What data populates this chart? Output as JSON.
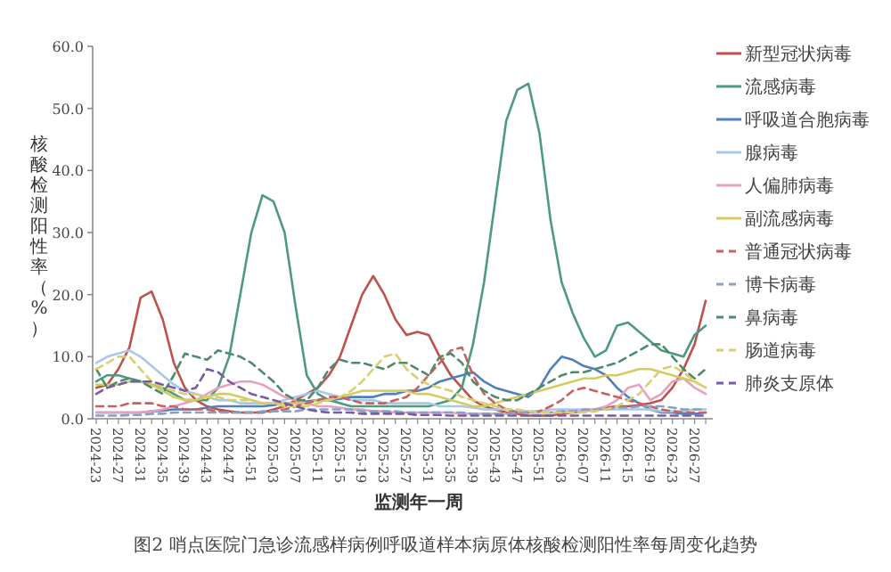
{
  "chart_data": {
    "type": "line",
    "title": "图2 哨点医院门急诊流感样病例呼吸道样本病原体核酸检测阳性率每周变化趋势",
    "xlabel": "监测年一周",
    "ylabel": "核酸检测阳性率（%）",
    "categories": [
      "2024-23",
      null,
      "2024-27",
      null,
      "2024-31",
      null,
      "2024-35",
      null,
      "2024-39",
      null,
      "2024-43",
      null,
      "2024-47",
      null,
      "2024-51",
      null,
      "2025-03",
      null,
      "2025-07",
      null,
      "2025-11",
      null,
      "2025-15",
      null,
      "2025-19",
      null,
      "2025-23",
      null,
      "2025-27",
      null,
      "2025-31",
      null,
      "2025-35",
      null,
      "2025-39",
      null,
      "2025-43",
      null,
      "2025-47",
      null,
      "2025-51",
      null,
      "2026-03",
      null,
      "2026-07",
      null,
      "2026-11",
      null,
      "2026-15",
      null,
      "2026-19",
      null,
      "2026-23",
      null,
      "2026-27",
      null
    ],
    "ylim": [
      0,
      60
    ],
    "yticks": [
      {
        "value": 0,
        "label": "0.0"
      },
      {
        "value": 10,
        "label": "10.0"
      },
      {
        "value": 20,
        "label": "20.0"
      },
      {
        "value": 30,
        "label": "30.0"
      },
      {
        "value": 40,
        "label": "40.0"
      },
      {
        "value": 50,
        "label": "50.0"
      },
      {
        "value": 60,
        "label": "60.0"
      }
    ],
    "legend": "right",
    "series": [
      {
        "name": "新型冠状病毒",
        "color": "#c0504d",
        "line_style": "solid",
        "values": [
          5,
          5.5,
          8,
          11.5,
          19.5,
          20.5,
          16,
          9,
          5,
          3,
          2,
          1.5,
          1.2,
          1,
          1,
          1,
          1.5,
          2,
          3,
          4,
          5,
          7,
          10,
          15,
          20,
          23,
          20,
          16,
          13.5,
          14,
          13.5,
          10,
          7,
          5,
          3,
          2,
          1.5,
          1,
          0.8,
          0.5,
          0.5,
          0.5,
          0.8,
          1,
          1.2,
          1.5,
          1.8,
          2,
          2,
          2.2,
          2.5,
          3,
          5,
          8,
          12,
          19
        ]
      },
      {
        "name": "流感病毒",
        "color": "#4e9a7f",
        "line_style": "solid",
        "values": [
          6,
          7,
          7,
          6.5,
          6,
          5.5,
          5,
          4,
          3,
          3,
          3,
          5,
          10,
          20,
          30,
          36,
          35,
          30,
          18,
          7,
          4,
          3,
          2.5,
          2,
          2,
          2,
          2,
          2,
          2,
          2,
          2,
          2.5,
          3,
          5,
          12,
          22,
          35,
          48,
          53,
          54,
          46,
          32,
          22,
          17,
          13,
          10,
          11,
          15,
          15.5,
          14,
          12.5,
          11,
          10.5,
          10,
          13.5,
          15
        ]
      },
      {
        "name": "呼吸道合胞病毒",
        "color": "#4f7fbf",
        "line_style": "solid",
        "values": [
          1,
          1,
          1,
          1,
          1,
          1.2,
          1.3,
          1.5,
          1.5,
          1.5,
          1.8,
          2,
          2,
          2,
          2,
          2,
          2.2,
          2.5,
          2.5,
          2.8,
          3,
          3,
          3.2,
          3.5,
          3.5,
          3.5,
          4,
          4,
          4.5,
          4.5,
          5,
          6,
          6.5,
          7,
          7.5,
          6,
          5,
          4.5,
          4,
          3.5,
          5,
          8,
          10,
          9.5,
          8.5,
          8,
          7,
          5,
          3.5,
          2.5,
          1.5,
          1,
          1,
          0.8,
          0.8,
          1
        ]
      },
      {
        "name": "腺病毒",
        "color": "#a8c8e8",
        "line_style": "solid",
        "values": [
          9,
          10,
          10.5,
          11,
          10,
          8.5,
          7,
          5.5,
          4.5,
          4,
          3.5,
          3,
          3,
          2.5,
          2.5,
          2.5,
          2.5,
          3,
          3.5,
          4,
          4.5,
          4,
          3.5,
          3,
          3,
          3,
          2.5,
          2.5,
          2.5,
          2.5,
          2.5,
          2,
          2,
          2,
          1.8,
          1.5,
          1.5,
          1.5,
          1.2,
          1.2,
          1.2,
          1.5,
          1.5,
          1.5,
          1.5,
          1.5,
          1.5,
          1.5,
          1.5,
          1.5,
          1.5,
          1.2,
          1.2,
          1.2,
          1.5,
          1.5
        ]
      },
      {
        "name": "人偏肺病毒",
        "color": "#e8a0c0",
        "line_style": "solid",
        "values": [
          1,
          1,
          1,
          1,
          1,
          1.2,
          1.5,
          2,
          2.5,
          3,
          4,
          5,
          5.5,
          6,
          6,
          5.5,
          4.5,
          3.5,
          3,
          2.5,
          2,
          2,
          1.8,
          1.5,
          1.5,
          1.2,
          1.2,
          1,
          1,
          1,
          1,
          1,
          1,
          0.8,
          0.8,
          0.8,
          0.8,
          0.8,
          1,
          1,
          1,
          1,
          1,
          1.2,
          1.2,
          1.5,
          2,
          3,
          5,
          5.5,
          3,
          4,
          6,
          6.5,
          5,
          4
        ]
      },
      {
        "name": "副流感病毒",
        "color": "#d4cc60",
        "line_style": "solid",
        "values": [
          5.5,
          5.5,
          5.5,
          6,
          6,
          5.5,
          4.5,
          3.5,
          3,
          3,
          3.5,
          4,
          4,
          3.5,
          3,
          2.5,
          2.5,
          2.5,
          2.5,
          2.5,
          3,
          3,
          3.5,
          4,
          4.5,
          4.5,
          4.5,
          4.5,
          4.5,
          4,
          4,
          3.5,
          3,
          2.5,
          2,
          2,
          2.5,
          3,
          3.5,
          4,
          4.5,
          5,
          5.5,
          6,
          6.5,
          6.5,
          7,
          7,
          7.5,
          8,
          8,
          7.5,
          7,
          6.5,
          6,
          5
        ]
      },
      {
        "name": "普通冠状病毒",
        "color": "#c8605c",
        "line_style": "dashed",
        "values": [
          2,
          2,
          2,
          2.5,
          2.5,
          2.5,
          2,
          2,
          1.5,
          1.5,
          1.5,
          1.2,
          1,
          1,
          1,
          1,
          1.2,
          1.5,
          2,
          2.5,
          3,
          3.5,
          3.5,
          3,
          2.5,
          2.5,
          2.5,
          3,
          3.5,
          5,
          7,
          9,
          11,
          11.5,
          7,
          4,
          2.5,
          1.5,
          1,
          1,
          1.2,
          2,
          3,
          4.5,
          5,
          4.5,
          4,
          3.5,
          3,
          2.5,
          2,
          1.5,
          1.2,
          1,
          1,
          1
        ]
      },
      {
        "name": "博卡病毒",
        "color": "#8aa0c0",
        "line_style": "dashed",
        "values": [
          0.5,
          0.5,
          0.5,
          0.6,
          0.6,
          0.8,
          0.8,
          1,
          1,
          1,
          1,
          1,
          1,
          1,
          1,
          1.2,
          1.2,
          1.2,
          1.2,
          1.5,
          1.5,
          1.5,
          1.5,
          1.5,
          1.2,
          1.2,
          1.2,
          1.2,
          1,
          1,
          1,
          1,
          1,
          1,
          0.8,
          0.8,
          0.8,
          0.8,
          1,
          1,
          1,
          1,
          1.2,
          1.2,
          1.5,
          1.5,
          1.5,
          1.8,
          1.8,
          2,
          2,
          2,
          1.8,
          1.5,
          1.5,
          1.5
        ]
      },
      {
        "name": "鼻病毒",
        "color": "#4f8a6a",
        "line_style": "dashed",
        "values": [
          8,
          5,
          6,
          6.5,
          6,
          5,
          4,
          7,
          10.5,
          10,
          9.5,
          11,
          10.5,
          10,
          9,
          7.5,
          6,
          4,
          3,
          3,
          5,
          8,
          9.5,
          9,
          9,
          8.5,
          8,
          9,
          9,
          8,
          7,
          10,
          10.5,
          9,
          6,
          4.5,
          3.5,
          3,
          3,
          4,
          5,
          6,
          7,
          7.5,
          7.5,
          8,
          8.5,
          9,
          10,
          11,
          12,
          12,
          10,
          8,
          6.5,
          8
        ]
      },
      {
        "name": "肠道病毒",
        "color": "#d8d070",
        "line_style": "dashed",
        "values": [
          8,
          9,
          10,
          10,
          8,
          6,
          5,
          4.5,
          4,
          4,
          3.5,
          3.5,
          3,
          3,
          3,
          2.5,
          2.5,
          2,
          2,
          2,
          2.5,
          3,
          3.5,
          4.5,
          6,
          8,
          10,
          10.5,
          8,
          6.5,
          5.5,
          5,
          4.5,
          3.5,
          3,
          2.5,
          2,
          1.5,
          1.5,
          1.2,
          1,
          1,
          1,
          1,
          1,
          1.2,
          1.5,
          2,
          3,
          4,
          6,
          8,
          8.5,
          7.5,
          6,
          5
        ]
      },
      {
        "name": "肺炎支原体",
        "color": "#7a5aa8",
        "line_style": "dashed",
        "values": [
          4,
          5,
          5.5,
          6,
          6,
          6,
          5.5,
          5,
          4.5,
          5,
          8,
          7.5,
          6,
          5,
          4,
          3.5,
          3,
          2.5,
          2,
          1.5,
          1.2,
          1,
          1,
          1,
          0.8,
          0.8,
          0.8,
          0.8,
          0.8,
          0.6,
          0.6,
          0.6,
          0.5,
          0.5,
          0.5,
          0.5,
          0.5,
          0.5,
          0.5,
          0.5,
          0.5,
          0.5,
          0.5,
          0.5,
          0.5,
          0.5,
          0.5,
          0.5,
          0.5,
          0.5,
          0.5,
          0.5,
          0.5,
          0.5,
          0.5,
          0.5
        ]
      }
    ]
  }
}
